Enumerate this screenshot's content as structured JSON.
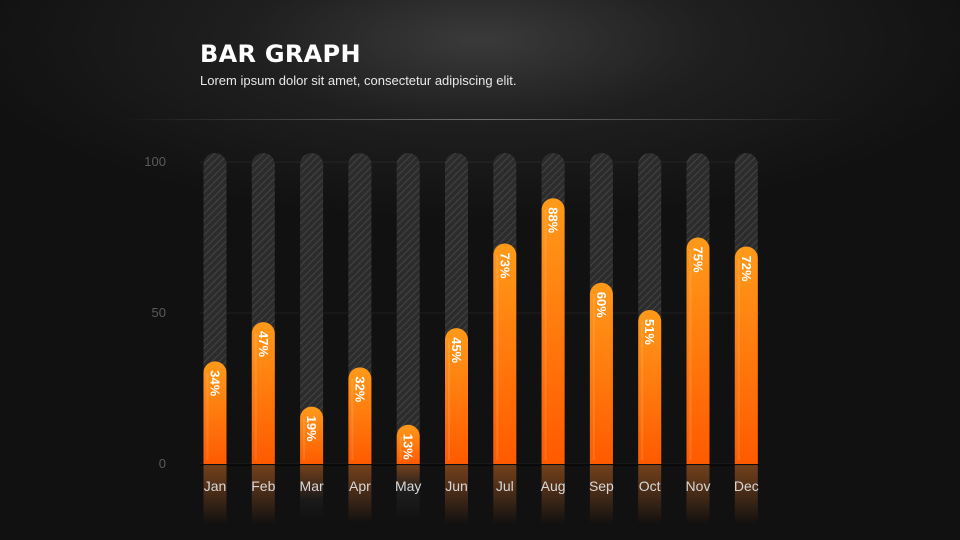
{
  "header": {
    "title": "BAR GRAPH",
    "subtitle": "Lorem ipsum dolor sit amet, consectetur adipiscing elit."
  },
  "colors": {
    "bar_top": "#ff9a1a",
    "bar_bottom": "#ff5a00",
    "track": "#3a3a3a",
    "axis_text": "#5a5a5a",
    "label_text": "#d8d8d8"
  },
  "chart_data": {
    "type": "bar",
    "title": "BAR GRAPH",
    "subtitle": "Lorem ipsum dolor sit amet, consectetur adipiscing elit.",
    "categories": [
      "Jan",
      "Feb",
      "Mar",
      "Apr",
      "May",
      "Jun",
      "Jul",
      "Aug",
      "Sep",
      "Oct",
      "Nov",
      "Dec"
    ],
    "values": [
      34,
      47,
      19,
      32,
      13,
      45,
      73,
      88,
      60,
      51,
      75,
      72
    ],
    "value_labels": [
      "34%",
      "47%",
      "19%",
      "32%",
      "13%",
      "45%",
      "73%",
      "88%",
      "60%",
      "51%",
      "75%",
      "72%"
    ],
    "ylim": [
      0,
      100
    ],
    "yticks": [
      0,
      50,
      100
    ],
    "ytick_labels": [
      "0",
      "50",
      "100"
    ],
    "grid": true,
    "legend": "none"
  }
}
